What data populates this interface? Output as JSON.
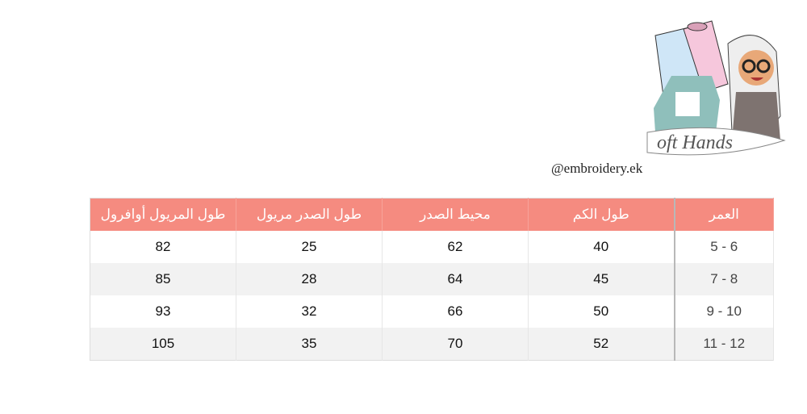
{
  "logo": {
    "text": "Soft Hands"
  },
  "handle": "@embroidery.ek",
  "table": {
    "headers": [
      "طول المريول أوافرول",
      "طول الصدر مريول",
      "محيط الصدر",
      "طول الكم",
      "العمر"
    ],
    "rows": [
      {
        "overall_length": "82",
        "chest_length": "25",
        "chest_circumference": "62",
        "sleeve_length": "40",
        "age": "5 - 6"
      },
      {
        "overall_length": "85",
        "chest_length": "28",
        "chest_circumference": "64",
        "sleeve_length": "45",
        "age": "7 - 8"
      },
      {
        "overall_length": "93",
        "chest_length": "32",
        "chest_circumference": "66",
        "sleeve_length": "50",
        "age": "9 - 10"
      },
      {
        "overall_length": "105",
        "chest_length": "35",
        "chest_circumference": "70",
        "sleeve_length": "52",
        "age": "11 - 12"
      }
    ]
  },
  "colors": {
    "header": "#f58b80",
    "alt_row": "#f2f2f2"
  }
}
